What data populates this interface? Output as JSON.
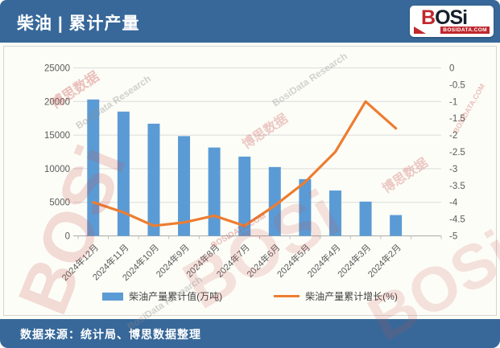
{
  "header": {
    "title": "柴油 | 累计产量",
    "logo_text": "BOSi",
    "logo_domain": "BOSIDATA.COM"
  },
  "footer": {
    "source": "数据来源：统计局、博思数据整理"
  },
  "watermarks": [
    {
      "text": "BOSi"
    },
    {
      "text": "博思数据"
    },
    {
      "text": "BosiData Research"
    },
    {
      "text": "BOSi"
    },
    {
      "text": "BOSIDATA.COM"
    },
    {
      "text": "博思数据"
    },
    {
      "text": "BosiData Research"
    },
    {
      "text": "BOSi"
    },
    {
      "text": "博思数据"
    },
    {
      "text": "BosiData Research"
    },
    {
      "text": "BOSIDATA.COM"
    }
  ],
  "chart_data": {
    "type": "bar",
    "subtype": "bar+line dual axis",
    "categories": [
      "2024年12月",
      "2024年11月",
      "2024年10月",
      "2024年9月",
      "2024年8月",
      "2024年7月",
      "2024年6月",
      "2024年5月",
      "2024年4月",
      "2024年3月",
      "2024年2月"
    ],
    "series": [
      {
        "name": "柴油产量累计值(万吨)",
        "type": "bar",
        "axis": "left",
        "color": "#5b9bd5",
        "values": [
          20300,
          18500,
          16700,
          14850,
          13150,
          11800,
          10250,
          8450,
          6750,
          5100,
          3100
        ]
      },
      {
        "name": "柴油产量累计增长(%)",
        "type": "line",
        "axis": "right",
        "color": "#ed7d31",
        "values": [
          -4.0,
          -4.3,
          -4.7,
          -4.6,
          -4.4,
          -4.7,
          -4.1,
          -3.4,
          -2.5,
          -1.0,
          -1.8
        ]
      }
    ],
    "title": "柴油 | 累计产量",
    "xlabel": "",
    "ylabel": "",
    "left_axis": {
      "min": 0,
      "max": 25000,
      "step": 5000,
      "ticks": [
        "0",
        "5000",
        "10000",
        "15000",
        "20000",
        "25000"
      ]
    },
    "right_axis": {
      "min": -5,
      "max": 0,
      "step": 0.5,
      "grid_step": 1,
      "ticks": [
        "0",
        "-0.5",
        "-1",
        "-1.5",
        "-2",
        "-2.5",
        "-3",
        "-3.5",
        "-4",
        "-4.5",
        "-5"
      ]
    },
    "grid": true,
    "legend_position": "bottom",
    "x_slots": 12
  }
}
